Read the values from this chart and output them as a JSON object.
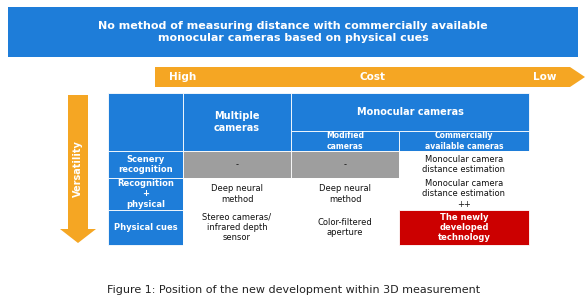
{
  "title_text": "No method of measuring distance with commercially available\nmonocular cameras based on physical cues",
  "title_bg": "#1E7DD9",
  "title_fg": "#FFFFFF",
  "cost_arrow_color": "#F5A623",
  "cost_high": "High",
  "cost_label": "Cost",
  "cost_low": "Low",
  "versatility_text": "Versatility",
  "versatility_arrow_color": "#F5A623",
  "header_bg": "#1E7DD9",
  "header_fg": "#FFFFFF",
  "col0_header": "Multiple\ncameras",
  "monocular_header": "Monocular cameras",
  "sub_header_0": "Modified\ncameras",
  "sub_header_1": "Commercially\navailable cameras",
  "row_headers": [
    "Scenery\nrecognition",
    "Recognition\n+\nphysical",
    "Physical cues"
  ],
  "row_header_bg": "#1E7DD9",
  "row_header_fg": "#FFFFFF",
  "cells": [
    [
      "-",
      "-",
      "Monocular camera\ndistance estimation"
    ],
    [
      "Deep neural\nmethod",
      "Deep neural\nmethod",
      "Monocular camera\ndistance estimation\n++"
    ],
    [
      "Stereo cameras/\ninfrared depth\nsensor",
      "Color-filtered\naperture",
      "The newly\ndeveloped\ntechnology"
    ]
  ],
  "cell_colors": [
    [
      "#9E9E9E",
      "#9E9E9E",
      "#FFFFFF"
    ],
    [
      "#FFFFFF",
      "#FFFFFF",
      "#FFFFFF"
    ],
    [
      "#FFFFFF",
      "#FFFFFF",
      "#CC0000"
    ]
  ],
  "cell_fg": [
    [
      "#111111",
      "#111111",
      "#111111"
    ],
    [
      "#111111",
      "#111111",
      "#111111"
    ],
    [
      "#111111",
      "#111111",
      "#FFFFFF"
    ]
  ],
  "cell_bold": [
    [
      false,
      false,
      false
    ],
    [
      false,
      false,
      false
    ],
    [
      false,
      false,
      true
    ]
  ],
  "caption": "Figure 1: Position of the new development within 3D measurement",
  "caption_fg": "#222222",
  "fig_w": 5.87,
  "fig_h": 3.07,
  "dpi": 100
}
